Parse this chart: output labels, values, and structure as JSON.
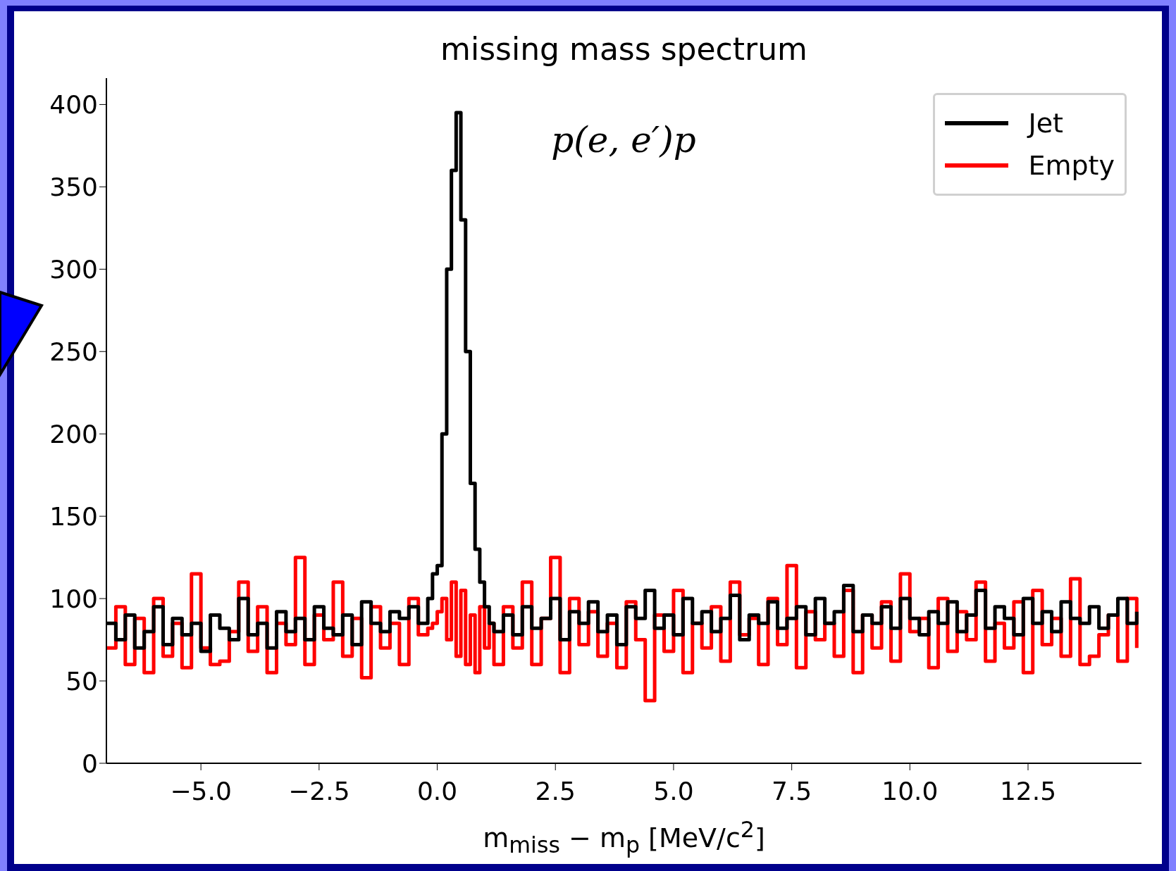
{
  "chart_data": {
    "type": "step",
    "title": "missing mass spectrum",
    "xlabel": "m$_{miss}$ − m$_{p}$ [MeV/c$^{2}$]",
    "annotations": [
      "p(e, e′)p"
    ],
    "x": [
      -7.0,
      -6.8,
      -6.6,
      -6.4,
      -6.2,
      -6.0,
      -5.8,
      -5.6,
      -5.4,
      -5.2,
      -5.0,
      -4.8,
      -4.6,
      -4.4,
      -4.2,
      -4.0,
      -3.8,
      -3.6,
      -3.4,
      -3.2,
      -3.0,
      -2.8,
      -2.6,
      -2.4,
      -2.2,
      -2.0,
      -1.8,
      -1.6,
      -1.4,
      -1.2,
      -1.0,
      -0.8,
      -0.6,
      -0.4,
      -0.2,
      -0.1,
      0.0,
      0.1,
      0.2,
      0.3,
      0.4,
      0.5,
      0.6,
      0.7,
      0.8,
      0.9,
      1.0,
      1.1,
      1.2,
      1.4,
      1.6,
      1.8,
      2.0,
      2.2,
      2.4,
      2.6,
      2.8,
      3.0,
      3.2,
      3.4,
      3.6,
      3.8,
      4.0,
      4.2,
      4.4,
      4.6,
      4.8,
      5.0,
      5.2,
      5.4,
      5.6,
      5.8,
      6.0,
      6.2,
      6.4,
      6.6,
      6.8,
      7.0,
      7.2,
      7.4,
      7.6,
      7.8,
      8.0,
      8.2,
      8.4,
      8.6,
      8.8,
      9.0,
      9.2,
      9.4,
      9.6,
      9.8,
      10.0,
      10.2,
      10.4,
      10.6,
      10.8,
      11.0,
      11.2,
      11.4,
      11.6,
      11.8,
      12.0,
      12.2,
      12.4,
      12.6,
      12.8,
      13.0,
      13.2,
      13.4,
      13.6,
      13.8,
      14.0,
      14.2,
      14.4,
      14.6,
      14.8
    ],
    "series": [
      {
        "name": "Jet",
        "color": "#000000",
        "values": [
          85,
          75,
          90,
          70,
          80,
          95,
          72,
          88,
          78,
          85,
          68,
          90,
          82,
          75,
          100,
          78,
          85,
          70,
          92,
          80,
          88,
          75,
          95,
          82,
          78,
          90,
          72,
          98,
          85,
          80,
          92,
          88,
          95,
          85,
          100,
          115,
          120,
          200,
          300,
          360,
          395,
          330,
          250,
          170,
          130,
          110,
          95,
          85,
          80,
          90,
          78,
          95,
          82,
          88,
          100,
          75,
          92,
          85,
          98,
          80,
          90,
          72,
          95,
          88,
          105,
          82,
          90,
          78,
          100,
          85,
          92,
          80,
          88,
          102,
          75,
          90,
          85,
          98,
          82,
          88,
          95,
          78,
          100,
          85,
          92,
          108,
          80,
          90,
          85,
          95,
          82,
          100,
          88,
          78,
          92,
          85,
          98,
          80,
          90,
          105,
          82,
          95,
          88,
          78,
          100,
          85,
          92,
          80,
          98,
          88,
          85,
          95,
          82,
          90,
          100,
          85,
          92
        ]
      },
      {
        "name": "Empty",
        "color": "#ff0000",
        "values": [
          70,
          95,
          60,
          88,
          55,
          100,
          65,
          85,
          58,
          115,
          70,
          60,
          62,
          80,
          110,
          68,
          95,
          55,
          85,
          72,
          125,
          60,
          90,
          75,
          110,
          65,
          88,
          52,
          95,
          70,
          85,
          60,
          100,
          78,
          82,
          85,
          92,
          100,
          75,
          110,
          65,
          105,
          60,
          90,
          55,
          95,
          70,
          85,
          60,
          95,
          70,
          110,
          60,
          88,
          125,
          55,
          100,
          72,
          92,
          65,
          85,
          58,
          98,
          75,
          38,
          90,
          68,
          105,
          55,
          85,
          70,
          95,
          62,
          110,
          78,
          88,
          60,
          100,
          72,
          120,
          58,
          92,
          75,
          85,
          65,
          105,
          55,
          90,
          70,
          98,
          62,
          115,
          80,
          88,
          58,
          100,
          68,
          92,
          75,
          110,
          62,
          85,
          70,
          98,
          55,
          105,
          72,
          88,
          65,
          112,
          60,
          65,
          78,
          90,
          62,
          100,
          70
        ]
      }
    ],
    "xlim": [
      -7,
      14.9
    ],
    "ylim": [
      0,
      416
    ],
    "xticks": [
      {
        "value": -5,
        "label": "−5.0"
      },
      {
        "value": -2.5,
        "label": "−2.5"
      },
      {
        "value": 0,
        "label": "0.0"
      },
      {
        "value": 2.5,
        "label": "2.5"
      },
      {
        "value": 5,
        "label": "5.0"
      },
      {
        "value": 7.5,
        "label": "7.5"
      },
      {
        "value": 10,
        "label": "10.0"
      },
      {
        "value": 12.5,
        "label": "12.5"
      }
    ],
    "yticks": [
      0,
      50,
      100,
      150,
      200,
      250,
      300,
      350,
      400
    ],
    "grid": false,
    "legend": "top right",
    "marker": "none",
    "line_style": "solid"
  }
}
